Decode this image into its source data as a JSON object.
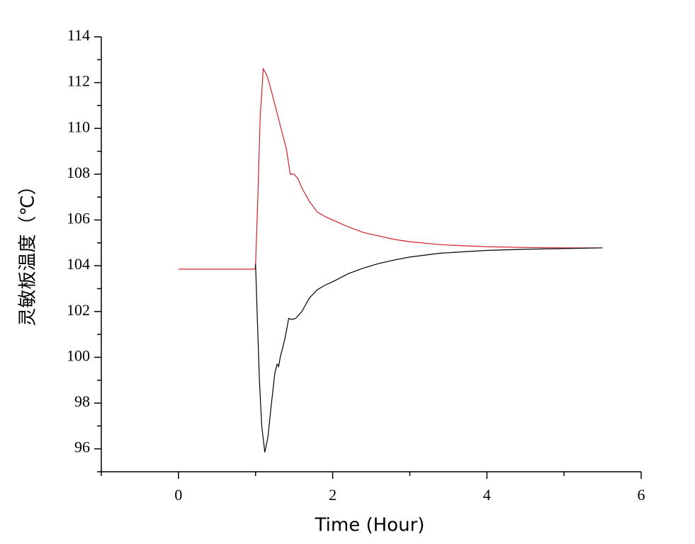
{
  "chart_data": {
    "type": "line",
    "xlabel": "Time (Hour)",
    "ylabel": "灵敏板温度（℃）",
    "xlim": [
      -1,
      6
    ],
    "xticks": [
      0,
      2,
      4,
      6
    ],
    "xminorticks": [
      -1,
      1,
      3,
      5
    ],
    "ylim": [
      95,
      114
    ],
    "yticks": [
      96,
      98,
      100,
      102,
      104,
      106,
      108,
      110,
      112,
      114
    ],
    "yminorticks": [
      95,
      97,
      99,
      101,
      103,
      105,
      107,
      109,
      111,
      113
    ],
    "grid": false,
    "series": [
      {
        "color": "#d0202a",
        "x": [
          0,
          0.99,
          1.0,
          1.03,
          1.06,
          1.1,
          1.15,
          1.2,
          1.3,
          1.4,
          1.45,
          1.5,
          1.55,
          1.6,
          1.7,
          1.8,
          1.9,
          2.0,
          2.2,
          2.4,
          2.6,
          2.8,
          3.0,
          3.4,
          4.0,
          4.5,
          5.0,
          5.5
        ],
        "values": [
          103.85,
          103.85,
          104.0,
          107.0,
          110.5,
          112.6,
          112.3,
          111.7,
          110.4,
          109.1,
          108.0,
          108.0,
          107.8,
          107.4,
          106.8,
          106.35,
          106.15,
          106.0,
          105.7,
          105.45,
          105.3,
          105.15,
          105.05,
          104.92,
          104.83,
          104.8,
          104.78,
          104.78
        ]
      },
      {
        "color": "#000000",
        "x": [
          1.0,
          1.02,
          1.05,
          1.08,
          1.12,
          1.16,
          1.2,
          1.25,
          1.28,
          1.3,
          1.32,
          1.38,
          1.43,
          1.47,
          1.52,
          1.6,
          1.7,
          1.8,
          1.9,
          2.0,
          2.2,
          2.4,
          2.6,
          2.8,
          3.0,
          3.4,
          4.0,
          4.5,
          5.0,
          5.5
        ],
        "values": [
          104.1,
          102.0,
          99.0,
          97.0,
          95.85,
          96.5,
          97.8,
          99.3,
          99.7,
          99.6,
          100.0,
          100.8,
          101.7,
          101.65,
          101.7,
          102.0,
          102.6,
          102.95,
          103.15,
          103.3,
          103.65,
          103.9,
          104.1,
          104.25,
          104.38,
          104.55,
          104.67,
          104.72,
          104.75,
          104.78
        ]
      }
    ]
  }
}
